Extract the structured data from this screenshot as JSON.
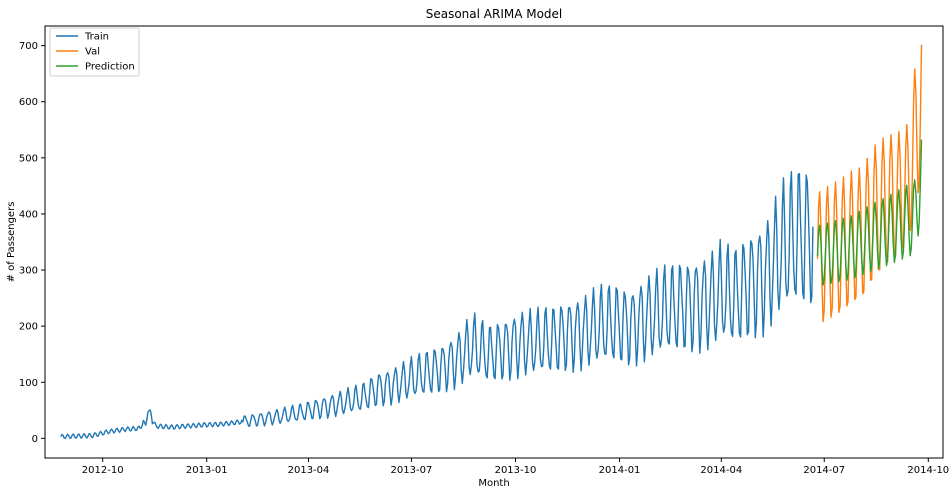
{
  "chart_data": {
    "type": "line",
    "title": "Seasonal ARIMA Model",
    "xlabel": "Month",
    "ylabel": "# of Passengers",
    "xlim": [
      "2012-08-11",
      "2014-10-14"
    ],
    "ylim": [
      -35,
      735
    ],
    "x_ticks": [
      {
        "date": "2012-10-01",
        "label": "2012-10"
      },
      {
        "date": "2013-01-01",
        "label": "2013-01"
      },
      {
        "date": "2013-04-01",
        "label": "2013-04"
      },
      {
        "date": "2013-07-01",
        "label": "2013-07"
      },
      {
        "date": "2013-10-01",
        "label": "2013-10"
      },
      {
        "date": "2014-01-01",
        "label": "2014-01"
      },
      {
        "date": "2014-04-01",
        "label": "2014-04"
      },
      {
        "date": "2014-07-01",
        "label": "2014-07"
      },
      {
        "date": "2014-10-01",
        "label": "2014-10"
      }
    ],
    "y_ticks": [
      0,
      100,
      200,
      300,
      400,
      500,
      600,
      700
    ],
    "grid": false,
    "legend_position": "upper-left",
    "series": [
      {
        "name": "Train",
        "color": "#1f77b4",
        "x": [
          "2012-08-25",
          "2012-09-08",
          "2012-09-22",
          "2012-10-06",
          "2012-10-20",
          "2012-11-03",
          "2012-11-10",
          "2012-11-17",
          "2012-12-01",
          "2012-12-15",
          "2012-12-29",
          "2013-01-12",
          "2013-01-26",
          "2013-02-09",
          "2013-02-23",
          "2013-03-09",
          "2013-03-23",
          "2013-04-06",
          "2013-04-20",
          "2013-05-04",
          "2013-05-18",
          "2013-06-01",
          "2013-06-15",
          "2013-06-29",
          "2013-07-13",
          "2013-07-27",
          "2013-08-10",
          "2013-08-24",
          "2013-09-07",
          "2013-09-21",
          "2013-10-05",
          "2013-10-19",
          "2013-11-02",
          "2013-11-16",
          "2013-11-30",
          "2013-12-14",
          "2013-12-28",
          "2014-01-11",
          "2014-01-25",
          "2014-02-08",
          "2014-02-22",
          "2014-03-08",
          "2014-03-22",
          "2014-04-01",
          "2014-04-12",
          "2014-04-26",
          "2014-05-10",
          "2014-05-24",
          "2014-06-07",
          "2014-06-21"
        ],
        "y": [
          3,
          4,
          5,
          12,
          16,
          18,
          45,
          22,
          20,
          22,
          24,
          25,
          28,
          32,
          36,
          40,
          45,
          52,
          58,
          65,
          72,
          88,
          95,
          105,
          115,
          125,
          140,
          165,
          150,
          160,
          170,
          170,
          175,
          185,
          190,
          200,
          205,
          200,
          215,
          225,
          235,
          240,
          245,
          260,
          250,
          275,
          290,
          335,
          360,
          360
        ]
      },
      {
        "name": "Val",
        "color": "#ff7f0e",
        "x": [
          "2014-06-25",
          "2014-07-05",
          "2014-07-15",
          "2014-07-25",
          "2014-08-04",
          "2014-08-14",
          "2014-08-24",
          "2014-09-03",
          "2014-09-13",
          "2014-09-19",
          "2014-09-25"
        ],
        "y": [
          320,
          330,
          340,
          355,
          365,
          400,
          420,
          430,
          450,
          530,
          600
        ]
      },
      {
        "name": "Prediction",
        "color": "#2ca02c",
        "x": [
          "2014-06-25",
          "2014-07-05",
          "2014-07-15",
          "2014-07-25",
          "2014-08-04",
          "2014-08-14",
          "2014-08-24",
          "2014-09-03",
          "2014-09-13",
          "2014-09-19",
          "2014-09-25"
        ],
        "y": [
          325,
          330,
          335,
          340,
          350,
          360,
          368,
          378,
          388,
          395,
          470
        ]
      }
    ]
  }
}
